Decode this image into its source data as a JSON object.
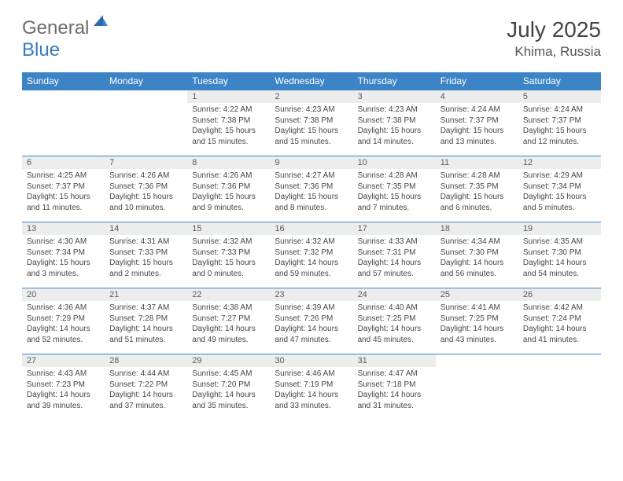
{
  "logo": {
    "textA": "General",
    "textB": "Blue"
  },
  "header": {
    "title": "July 2025",
    "location": "Khima, Russia"
  },
  "colors": {
    "headerBar": "#3c84c6",
    "dayBar": "#eceded",
    "bg": "#ffffff",
    "text": "#474747"
  },
  "dayNames": [
    "Sunday",
    "Monday",
    "Tuesday",
    "Wednesday",
    "Thursday",
    "Friday",
    "Saturday"
  ],
  "weeks": [
    [
      null,
      null,
      {
        "n": "1",
        "sr": "4:22 AM",
        "ss": "7:38 PM",
        "dl": "15 hours and 15 minutes."
      },
      {
        "n": "2",
        "sr": "4:23 AM",
        "ss": "7:38 PM",
        "dl": "15 hours and 15 minutes."
      },
      {
        "n": "3",
        "sr": "4:23 AM",
        "ss": "7:38 PM",
        "dl": "15 hours and 14 minutes."
      },
      {
        "n": "4",
        "sr": "4:24 AM",
        "ss": "7:37 PM",
        "dl": "15 hours and 13 minutes."
      },
      {
        "n": "5",
        "sr": "4:24 AM",
        "ss": "7:37 PM",
        "dl": "15 hours and 12 minutes."
      }
    ],
    [
      {
        "n": "6",
        "sr": "4:25 AM",
        "ss": "7:37 PM",
        "dl": "15 hours and 11 minutes."
      },
      {
        "n": "7",
        "sr": "4:26 AM",
        "ss": "7:36 PM",
        "dl": "15 hours and 10 minutes."
      },
      {
        "n": "8",
        "sr": "4:26 AM",
        "ss": "7:36 PM",
        "dl": "15 hours and 9 minutes."
      },
      {
        "n": "9",
        "sr": "4:27 AM",
        "ss": "7:36 PM",
        "dl": "15 hours and 8 minutes."
      },
      {
        "n": "10",
        "sr": "4:28 AM",
        "ss": "7:35 PM",
        "dl": "15 hours and 7 minutes."
      },
      {
        "n": "11",
        "sr": "4:28 AM",
        "ss": "7:35 PM",
        "dl": "15 hours and 6 minutes."
      },
      {
        "n": "12",
        "sr": "4:29 AM",
        "ss": "7:34 PM",
        "dl": "15 hours and 5 minutes."
      }
    ],
    [
      {
        "n": "13",
        "sr": "4:30 AM",
        "ss": "7:34 PM",
        "dl": "15 hours and 3 minutes."
      },
      {
        "n": "14",
        "sr": "4:31 AM",
        "ss": "7:33 PM",
        "dl": "15 hours and 2 minutes."
      },
      {
        "n": "15",
        "sr": "4:32 AM",
        "ss": "7:33 PM",
        "dl": "15 hours and 0 minutes."
      },
      {
        "n": "16",
        "sr": "4:32 AM",
        "ss": "7:32 PM",
        "dl": "14 hours and 59 minutes."
      },
      {
        "n": "17",
        "sr": "4:33 AM",
        "ss": "7:31 PM",
        "dl": "14 hours and 57 minutes."
      },
      {
        "n": "18",
        "sr": "4:34 AM",
        "ss": "7:30 PM",
        "dl": "14 hours and 56 minutes."
      },
      {
        "n": "19",
        "sr": "4:35 AM",
        "ss": "7:30 PM",
        "dl": "14 hours and 54 minutes."
      }
    ],
    [
      {
        "n": "20",
        "sr": "4:36 AM",
        "ss": "7:29 PM",
        "dl": "14 hours and 52 minutes."
      },
      {
        "n": "21",
        "sr": "4:37 AM",
        "ss": "7:28 PM",
        "dl": "14 hours and 51 minutes."
      },
      {
        "n": "22",
        "sr": "4:38 AM",
        "ss": "7:27 PM",
        "dl": "14 hours and 49 minutes."
      },
      {
        "n": "23",
        "sr": "4:39 AM",
        "ss": "7:26 PM",
        "dl": "14 hours and 47 minutes."
      },
      {
        "n": "24",
        "sr": "4:40 AM",
        "ss": "7:25 PM",
        "dl": "14 hours and 45 minutes."
      },
      {
        "n": "25",
        "sr": "4:41 AM",
        "ss": "7:25 PM",
        "dl": "14 hours and 43 minutes."
      },
      {
        "n": "26",
        "sr": "4:42 AM",
        "ss": "7:24 PM",
        "dl": "14 hours and 41 minutes."
      }
    ],
    [
      {
        "n": "27",
        "sr": "4:43 AM",
        "ss": "7:23 PM",
        "dl": "14 hours and 39 minutes."
      },
      {
        "n": "28",
        "sr": "4:44 AM",
        "ss": "7:22 PM",
        "dl": "14 hours and 37 minutes."
      },
      {
        "n": "29",
        "sr": "4:45 AM",
        "ss": "7:20 PM",
        "dl": "14 hours and 35 minutes."
      },
      {
        "n": "30",
        "sr": "4:46 AM",
        "ss": "7:19 PM",
        "dl": "14 hours and 33 minutes."
      },
      {
        "n": "31",
        "sr": "4:47 AM",
        "ss": "7:18 PM",
        "dl": "14 hours and 31 minutes."
      },
      null,
      null
    ]
  ],
  "labels": {
    "sunrise": "Sunrise:",
    "sunset": "Sunset:",
    "daylight": "Daylight:"
  }
}
